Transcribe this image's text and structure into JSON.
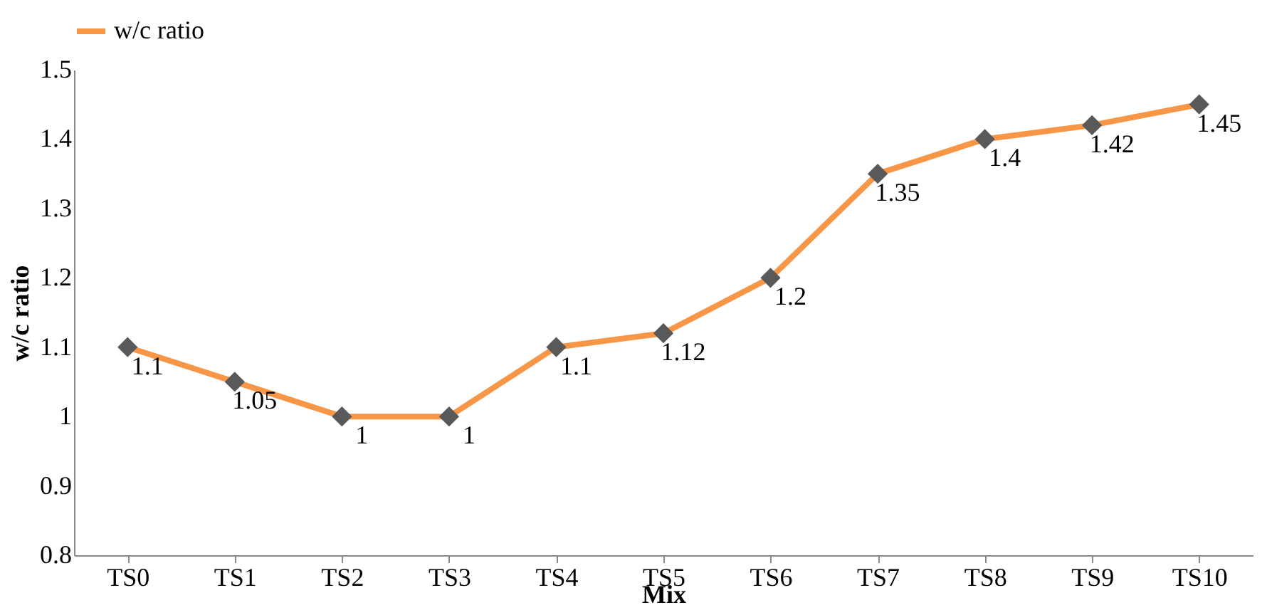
{
  "chart_data": {
    "type": "line",
    "xlabel": "Mix",
    "ylabel": "w/c ratio",
    "categories": [
      "TS0",
      "TS1",
      "TS2",
      "TS3",
      "TS4",
      "TS5",
      "TS6",
      "TS7",
      "TS8",
      "TS9",
      "TS10"
    ],
    "series": [
      {
        "name": "w/c ratio",
        "color": "#f79646",
        "values": [
          1.1,
          1.05,
          1,
          1,
          1.1,
          1.12,
          1.2,
          1.35,
          1.4,
          1.42,
          1.45
        ]
      }
    ],
    "ylim": [
      0.8,
      1.5
    ],
    "yticks": [
      0.8,
      0.9,
      1,
      1.1,
      1.2,
      1.3,
      1.4,
      1.5
    ],
    "grid": false,
    "legend": "top",
    "marker": "diamond",
    "line_style": "solid",
    "data_labels": true
  }
}
